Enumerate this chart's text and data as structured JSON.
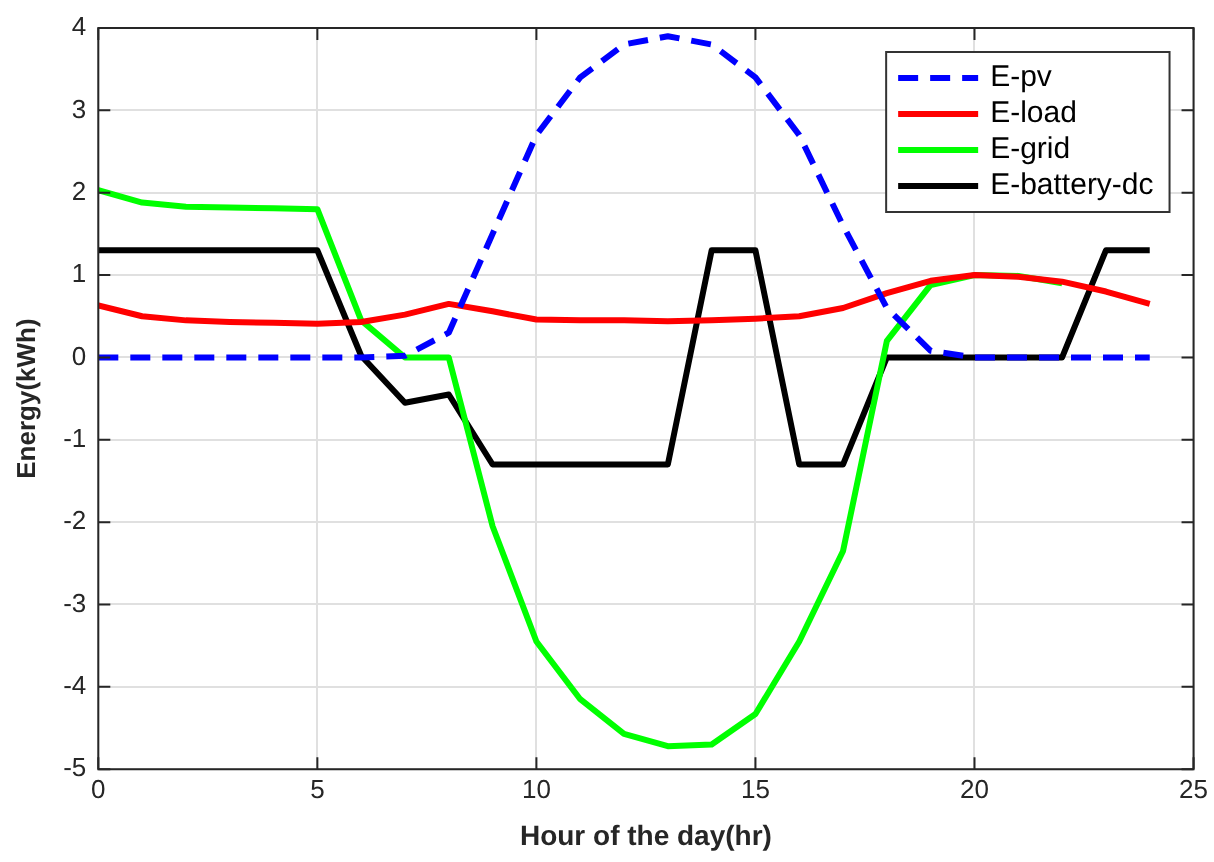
{
  "chart_data": {
    "type": "line",
    "xlabel": "Hour of the day(hr)",
    "ylabel": "Energy(kWh)",
    "x": [
      0,
      1,
      2,
      3,
      4,
      5,
      6,
      7,
      8,
      9,
      10,
      11,
      12,
      13,
      14,
      15,
      16,
      17,
      18,
      19,
      20,
      21,
      22,
      23,
      24
    ],
    "xlim": [
      0,
      25
    ],
    "xticks": [
      0,
      5,
      10,
      15,
      20,
      25
    ],
    "ylim": [
      -5,
      4
    ],
    "yticks": [
      -5,
      -4,
      -3,
      -2,
      -1,
      0,
      1,
      2,
      3,
      4
    ],
    "grid": true,
    "legend": "top right",
    "marker": "none",
    "series": [
      {
        "name": "E-pv",
        "color": "#0000ff",
        "line_style": "dashed",
        "values": [
          0,
          0,
          0,
          0,
          0,
          0,
          0,
          0.02,
          0.3,
          1.5,
          2.7,
          3.4,
          3.8,
          3.9,
          3.8,
          3.4,
          2.7,
          1.6,
          0.6,
          0.08,
          0,
          0,
          0,
          0,
          0
        ]
      },
      {
        "name": "E-load",
        "color": "#ff0000",
        "values": [
          0.63,
          0.5,
          0.45,
          0.43,
          0.42,
          0.41,
          0.43,
          0.52,
          0.65,
          0.56,
          0.46,
          0.45,
          0.45,
          0.44,
          0.45,
          0.47,
          0.5,
          0.6,
          0.78,
          0.93,
          1.0,
          0.98,
          0.92,
          0.8,
          0.65
        ]
      },
      {
        "name": "E-grid",
        "color": "#00ff00",
        "values": [
          2.03,
          1.88,
          1.83,
          1.82,
          1.81,
          1.8,
          0.45,
          0,
          0,
          -2.05,
          -3.45,
          -4.15,
          -4.57,
          -4.72,
          -4.7,
          -4.33,
          -3.45,
          -2.35,
          0.2,
          0.88,
          1.0,
          0.99,
          0.9,
          null,
          null
        ]
      },
      {
        "name": "E-battery-dc",
        "color": "#000000",
        "values": [
          1.3,
          1.3,
          1.3,
          1.3,
          1.3,
          1.3,
          0.02,
          -0.55,
          -0.45,
          -1.3,
          -1.3,
          -1.3,
          -1.3,
          -1.3,
          1.3,
          1.3,
          -1.3,
          -1.3,
          0,
          0,
          0,
          0,
          0,
          1.3,
          1.3
        ]
      }
    ]
  }
}
